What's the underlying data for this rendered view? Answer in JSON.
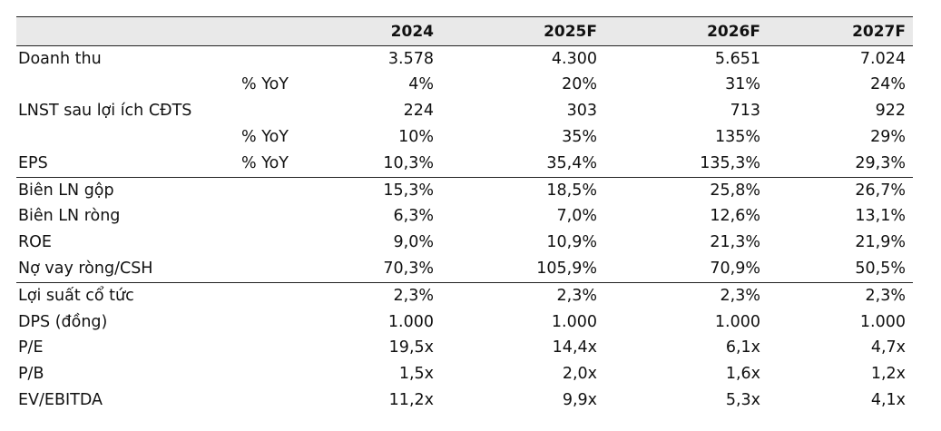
{
  "table": {
    "years": [
      "2024",
      "2025F",
      "2026F",
      "2027F"
    ],
    "rows": [
      {
        "label": "Doanh thu",
        "sub": "",
        "values": [
          "3.578",
          "4.300",
          "5.651",
          "7.024"
        ]
      },
      {
        "label": "",
        "sub": "% YoY",
        "values": [
          "4%",
          "20%",
          "31%",
          "24%"
        ]
      },
      {
        "label": "LNST sau lợi ích CĐTS",
        "sub": "",
        "values": [
          "224",
          "303",
          "713",
          "922"
        ]
      },
      {
        "label": "",
        "sub": "% YoY",
        "values": [
          "10%",
          "35%",
          "135%",
          "29%"
        ]
      },
      {
        "label": "EPS",
        "sub": "% YoY",
        "values": [
          "10,3%",
          "35,4%",
          "135,3%",
          "29,3%"
        ]
      },
      {
        "label": "Biên LN gộp",
        "sub": "",
        "values": [
          "15,3%",
          "18,5%",
          "25,8%",
          "26,7%"
        ]
      },
      {
        "label": "Biên LN ròng",
        "sub": "",
        "values": [
          "6,3%",
          "7,0%",
          "12,6%",
          "13,1%"
        ]
      },
      {
        "label": "ROE",
        "sub": "",
        "values": [
          "9,0%",
          "10,9%",
          "21,3%",
          "21,9%"
        ]
      },
      {
        "label": "Nợ vay ròng/CSH",
        "sub": "",
        "values": [
          "70,3%",
          "105,9%",
          "70,9%",
          "50,5%"
        ]
      },
      {
        "label": "Lợi suất cổ tức",
        "sub": "",
        "values": [
          "2,3%",
          "2,3%",
          "2,3%",
          "2,3%"
        ]
      },
      {
        "label": "DPS (đồng)",
        "sub": "",
        "values": [
          "1.000",
          "1.000",
          "1.000",
          "1.000"
        ]
      },
      {
        "label": "P/E",
        "sub": "",
        "values": [
          "19,5x",
          "14,4x",
          "6,1x",
          "4,7x"
        ]
      },
      {
        "label": "P/B",
        "sub": "",
        "values": [
          "1,5x",
          "2,0x",
          "1,6x",
          "1,2x"
        ]
      },
      {
        "label": "EV/EBITDA",
        "sub": "",
        "values": [
          "11,2x",
          "9,9x",
          "5,3x",
          "4,1x"
        ]
      }
    ]
  },
  "colors": {
    "header_bg": "#e9e9e9",
    "rule": "#222222",
    "text": "#111111"
  }
}
